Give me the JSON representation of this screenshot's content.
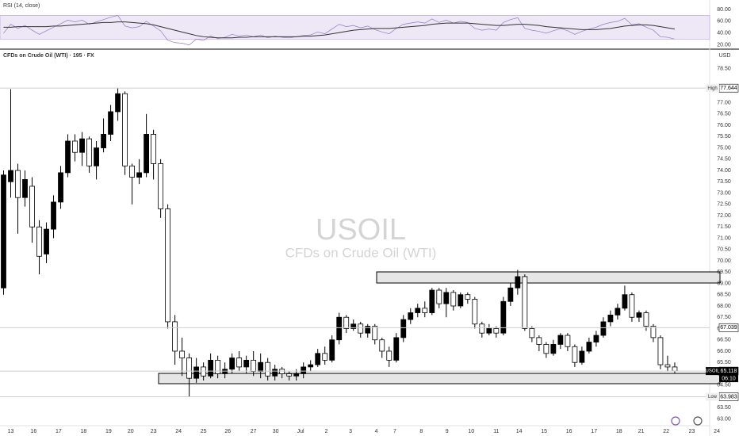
{
  "header": {
    "rsi_label": "RSI (14, close)",
    "symbol_title": "CFDs on Crude Oil (WTI) · 195 · FX",
    "currency": "USD"
  },
  "watermark": {
    "symbol": "USOIL",
    "description": "CFDs on Crude Oil (WTI)"
  },
  "chart_data": [
    {
      "type": "candlestick",
      "up_color": "#000000",
      "down_color": "#ffffff",
      "open": [
        68.8,
        73.5,
        74.0,
        72.8,
        73.3,
        71.5,
        70.3,
        71.4,
        72.6,
        73.9,
        75.3,
        74.8,
        75.4,
        74.2,
        75.0,
        75.6,
        76.6,
        77.4,
        74.2,
        73.7,
        73.9,
        75.6,
        74.3,
        72.3,
        67.3,
        66.0,
        65.7,
        64.8,
        65.3,
        64.9,
        65.6,
        65.0,
        65.2,
        65.7,
        65.3,
        65.6,
        65.1,
        65.5,
        64.9,
        65.2,
        65.0,
        64.9,
        65.0,
        65.3,
        65.4,
        65.9,
        65.6,
        66.5,
        67.5,
        67.0,
        67.2,
        66.8,
        67.1,
        66.5,
        66.0,
        65.6,
        66.6,
        67.4,
        67.7,
        67.9,
        67.7,
        68.7,
        68.1,
        68.6,
        68.0,
        68.5,
        68.3,
        67.2,
        66.8,
        67.0,
        66.8,
        68.2,
        68.8,
        69.3,
        67.0,
        66.6,
        66.3,
        65.9,
        66.3,
        66.7,
        66.2,
        65.5,
        66.0,
        66.4,
        66.7,
        67.3,
        67.6,
        67.9,
        68.5,
        67.5,
        67.7,
        67.1,
        66.6,
        65.4,
        65.3
      ],
      "high": [
        74.0,
        77.6,
        74.3,
        74.0,
        73.7,
        71.8,
        71.7,
        72.9,
        74.2,
        75.6,
        75.6,
        75.7,
        75.5,
        75.3,
        76.3,
        76.9,
        77.644,
        77.5,
        74.3,
        74.5,
        76.5,
        75.8,
        74.5,
        72.5,
        67.6,
        66.6,
        65.9,
        65.7,
        65.5,
        65.9,
        65.8,
        65.5,
        65.9,
        66.0,
        65.8,
        66.0,
        65.9,
        65.7,
        65.4,
        65.3,
        65.1,
        65.2,
        65.5,
        65.6,
        66.1,
        66.2,
        66.7,
        67.7,
        67.6,
        67.4,
        67.3,
        67.2,
        67.2,
        66.6,
        66.2,
        66.8,
        67.6,
        67.9,
        68.1,
        68.2,
        68.8,
        68.8,
        68.8,
        68.7,
        68.6,
        68.6,
        68.4,
        67.3,
        67.2,
        67.1,
        68.4,
        69.0,
        69.6,
        69.4,
        67.1,
        66.7,
        66.4,
        66.5,
        66.8,
        66.8,
        66.3,
        66.2,
        66.6,
        66.9,
        67.5,
        67.8,
        68.1,
        68.9,
        68.6,
        67.8,
        67.8,
        67.2,
        66.7,
        65.8,
        65.5
      ],
      "low": [
        68.5,
        72.8,
        71.2,
        72.4,
        70.8,
        69.4,
        69.9,
        71.0,
        72.3,
        73.7,
        74.4,
        74.2,
        73.9,
        73.6,
        74.8,
        75.3,
        76.2,
        73.8,
        72.5,
        73.4,
        73.7,
        73.6,
        71.9,
        67.0,
        65.4,
        64.9,
        63.983,
        64.6,
        64.7,
        64.8,
        64.8,
        64.8,
        65.0,
        65.1,
        65.0,
        64.9,
        64.8,
        64.7,
        64.7,
        64.8,
        64.7,
        64.7,
        64.8,
        65.1,
        65.3,
        65.4,
        65.5,
        66.3,
        66.8,
        66.9,
        66.6,
        66.6,
        66.3,
        65.7,
        65.3,
        65.5,
        66.4,
        67.2,
        67.5,
        67.5,
        67.6,
        67.9,
        67.5,
        67.8,
        67.9,
        68.1,
        67.0,
        66.6,
        66.7,
        66.6,
        66.7,
        68.0,
        68.5,
        66.9,
        66.4,
        66.0,
        65.7,
        65.8,
        66.1,
        66.0,
        65.3,
        65.4,
        65.9,
        66.2,
        66.6,
        67.1,
        67.4,
        67.8,
        67.3,
        67.3,
        66.9,
        66.4,
        65.2,
        65.1,
        65.0
      ],
      "close": [
        73.8,
        74.0,
        72.8,
        73.6,
        71.5,
        70.2,
        71.4,
        72.6,
        73.9,
        75.3,
        74.8,
        75.4,
        74.2,
        75.0,
        75.6,
        76.6,
        77.4,
        74.2,
        73.7,
        73.9,
        75.6,
        74.3,
        72.3,
        67.3,
        66.0,
        65.7,
        64.8,
        65.3,
        64.9,
        65.6,
        65.0,
        65.2,
        65.7,
        65.3,
        65.6,
        65.1,
        65.5,
        64.9,
        65.2,
        65.0,
        64.9,
        65.0,
        65.3,
        65.4,
        65.9,
        65.6,
        66.5,
        67.5,
        67.0,
        67.2,
        66.8,
        67.1,
        66.5,
        66.0,
        65.6,
        66.6,
        67.4,
        67.7,
        67.9,
        67.7,
        68.7,
        68.1,
        68.6,
        68.0,
        68.5,
        68.3,
        67.2,
        66.8,
        67.0,
        66.8,
        68.2,
        68.8,
        69.3,
        67.0,
        66.6,
        66.3,
        65.9,
        66.3,
        66.7,
        66.2,
        65.5,
        66.0,
        66.4,
        66.7,
        67.3,
        67.6,
        67.9,
        68.5,
        67.5,
        67.7,
        67.1,
        66.6,
        65.4,
        65.3,
        65.118
      ],
      "xlim": [
        -0.5,
        103
      ],
      "xticks": [
        {
          "value": 1,
          "label": "13"
        },
        {
          "value": 4.2,
          "label": "16"
        },
        {
          "value": 7.7,
          "label": "17"
        },
        {
          "value": 11.2,
          "label": "18"
        },
        {
          "value": 14.7,
          "label": "19"
        },
        {
          "value": 17.8,
          "label": "20"
        },
        {
          "value": 21,
          "label": "23"
        },
        {
          "value": 24.5,
          "label": "24"
        },
        {
          "value": 28,
          "label": "25"
        },
        {
          "value": 31.4,
          "label": "26"
        },
        {
          "value": 35,
          "label": "27"
        },
        {
          "value": 38.1,
          "label": "30"
        },
        {
          "value": 41.6,
          "label": "Jul"
        },
        {
          "value": 45.2,
          "label": "2"
        },
        {
          "value": 48.6,
          "label": "3"
        },
        {
          "value": 52.2,
          "label": "4"
        },
        {
          "value": 54.8,
          "label": "7"
        },
        {
          "value": 58.5,
          "label": "8"
        },
        {
          "value": 62.1,
          "label": "9"
        },
        {
          "value": 65.5,
          "label": "10"
        },
        {
          "value": 69,
          "label": "11"
        },
        {
          "value": 72.2,
          "label": "14"
        },
        {
          "value": 75.7,
          "label": "15"
        },
        {
          "value": 79.2,
          "label": "16"
        },
        {
          "value": 82.7,
          "label": "17"
        },
        {
          "value": 86.2,
          "label": "18"
        },
        {
          "value": 89.3,
          "label": "21"
        },
        {
          "value": 92.8,
          "label": "22"
        },
        {
          "value": 96.4,
          "label": "23"
        },
        {
          "value": 99.9,
          "label": "24"
        }
      ],
      "ylim": [
        62.7,
        79.3
      ],
      "yticks": [
        {
          "value": 63,
          "label": "63.00"
        },
        {
          "value": 63.5,
          "label": "63.50"
        },
        {
          "value": 64,
          "label": "64.00"
        },
        {
          "value": 64.5,
          "label": "64.50"
        },
        {
          "value": 65,
          "label": "65.00"
        },
        {
          "value": 65.5,
          "label": "65.50"
        },
        {
          "value": 66,
          "label": "66.00"
        },
        {
          "value": 66.5,
          "label": "66.50"
        },
        {
          "value": 67,
          "label": "67.00"
        },
        {
          "value": 67.5,
          "label": "67.50"
        },
        {
          "value": 68,
          "label": "68.00"
        },
        {
          "value": 68.5,
          "label": "68.50"
        },
        {
          "value": 69,
          "label": "69.00"
        },
        {
          "value": 69.5,
          "label": "69.50"
        },
        {
          "value": 70,
          "label": "70.00"
        },
        {
          "value": 70.5,
          "label": "70.50"
        },
        {
          "value": 71,
          "label": "71.00"
        },
        {
          "value": 71.5,
          "label": "71.50"
        },
        {
          "value": 72,
          "label": "72.00"
        },
        {
          "value": 72.5,
          "label": "72.50"
        },
        {
          "value": 73,
          "label": "73.00"
        },
        {
          "value": 73.5,
          "label": "73.50"
        },
        {
          "value": 74,
          "label": "74.00"
        },
        {
          "value": 74.5,
          "label": "74.50"
        },
        {
          "value": 75,
          "label": "75.00"
        },
        {
          "value": 75.5,
          "label": "75.50"
        },
        {
          "value": 76,
          "label": "76.00"
        },
        {
          "value": 76.5,
          "label": "76.50"
        },
        {
          "value": 77,
          "label": "77.00"
        },
        {
          "value": 78.5,
          "label": "78.50"
        }
      ],
      "price_lines": [
        {
          "label": "High",
          "value": 77.644
        },
        {
          "value": 67.039
        },
        {
          "label": "USOIL",
          "value": 65.118,
          "countdown": "06:10"
        },
        {
          "label": "Low",
          "value": 63.983
        }
      ]
    },
    {
      "type": "line",
      "title": "RSI (14, close)",
      "band": [
        30,
        70
      ],
      "band_color": "#ede7f6",
      "series": [
        {
          "color": "#8e7cc3",
          "values": [
            40,
            55,
            48,
            53,
            45,
            38,
            44,
            50,
            56,
            62,
            59,
            62,
            55,
            59,
            63,
            67,
            70,
            52,
            49,
            51,
            60,
            52,
            44,
            28,
            24,
            23,
            20,
            30,
            28,
            35,
            31,
            33,
            38,
            35,
            37,
            34,
            37,
            32,
            35,
            33,
            32,
            34,
            36,
            37,
            42,
            39,
            47,
            55,
            51,
            53,
            49,
            52,
            46,
            42,
            39,
            48,
            55,
            57,
            59,
            57,
            64,
            58,
            62,
            57,
            60,
            58,
            48,
            45,
            47,
            45,
            58,
            63,
            66,
            48,
            45,
            43,
            40,
            44,
            48,
            44,
            38,
            43,
            47,
            50,
            55,
            58,
            60,
            65,
            54,
            56,
            50,
            45,
            34,
            33,
            30
          ]
        },
        {
          "color": "#333333",
          "values": [
            50,
            50,
            51,
            51,
            51,
            51,
            51,
            52,
            52,
            53,
            54,
            55,
            56,
            57,
            58,
            58,
            59,
            59,
            58,
            57,
            56,
            54,
            51,
            48,
            45,
            42,
            39,
            36,
            34,
            33,
            32,
            32,
            32,
            33,
            33,
            34,
            34,
            34,
            34,
            34,
            34,
            34,
            35,
            35,
            36,
            37,
            39,
            41,
            43,
            45,
            46,
            47,
            48,
            48,
            48,
            49,
            50,
            51,
            52,
            53,
            55,
            56,
            57,
            57,
            57,
            57,
            56,
            55,
            54,
            53,
            53,
            54,
            55,
            55,
            54,
            53,
            51,
            50,
            49,
            48,
            47,
            46,
            46,
            46,
            47,
            48,
            50,
            52,
            53,
            54,
            54,
            53,
            51,
            49,
            47
          ]
        }
      ],
      "ylim": [
        13,
        96
      ],
      "yticks": [
        {
          "value": 80,
          "label": "80.00"
        },
        {
          "value": 60,
          "label": "60.00"
        },
        {
          "value": 40,
          "label": "40.00"
        },
        {
          "value": 20,
          "label": "20.00"
        }
      ]
    }
  ]
}
